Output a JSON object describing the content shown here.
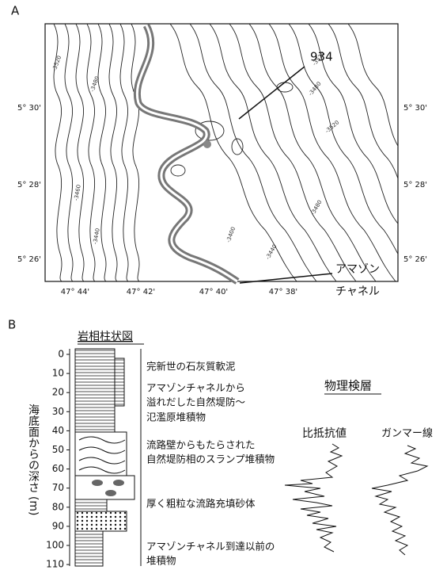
{
  "panel_a": {
    "label": "A",
    "well_label": "934",
    "channel_label": [
      "アマゾン",
      "チャネル"
    ],
    "lat_labels_left": [
      "5° 30'",
      "5° 28'",
      "5° 26'"
    ],
    "lat_labels_right": [
      "5° 30'",
      "5° 28'",
      "5° 26'"
    ],
    "lon_labels": [
      "47° 44'",
      "47° 42'",
      "47° 40'",
      "47° 38'"
    ],
    "contour_labels": [
      "-3520",
      "-3480",
      "-3460",
      "-3440",
      "-3400",
      "-3440",
      "-3480",
      "-3520",
      "-3520",
      "-3480"
    ]
  },
  "panel_b": {
    "label": "B",
    "column_title": "岩相柱状図",
    "depth_axis_label": "海底面からの深さ (m)",
    "depth_ticks": [
      0,
      10,
      20,
      30,
      40,
      50,
      60,
      70,
      80,
      90,
      100,
      110
    ],
    "descriptions": [
      [
        "完新世の石灰質軟泥"
      ],
      [
        "アマゾンチャネルから",
        "溢れだした自然堤防～",
        "氾濫原堆積物"
      ],
      [
        "流路壁からもたらされた",
        "自然堤防相のスランプ堆積物"
      ],
      [
        "厚く粗粒な流路充填砂体"
      ],
      [
        "アマゾンチャネル到達以前の",
        "堆積物"
      ]
    ],
    "logs_title": "物理検層",
    "log_names": [
      "比抵抗値",
      "ガンマー線"
    ]
  }
}
